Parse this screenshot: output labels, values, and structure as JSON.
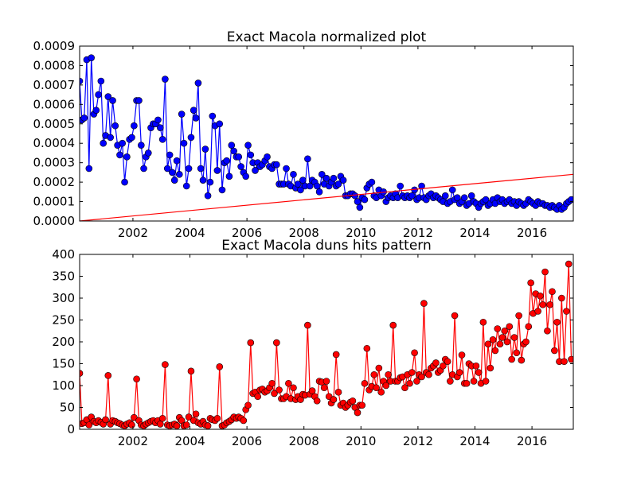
{
  "chart_data": [
    {
      "type": "line",
      "title": "Exact Macola normalized plot",
      "x": [
        2000.13,
        2000.21,
        2000.29,
        2000.38,
        2000.46,
        2000.54,
        2000.63,
        2000.71,
        2000.79,
        2000.88,
        2000.96,
        2001.04,
        2001.13,
        2001.21,
        2001.29,
        2001.38,
        2001.46,
        2001.54,
        2001.63,
        2001.71,
        2001.79,
        2001.88,
        2001.96,
        2002.04,
        2002.13,
        2002.21,
        2002.29,
        2002.38,
        2002.46,
        2002.54,
        2002.63,
        2002.71,
        2002.79,
        2002.88,
        2002.96,
        2003.04,
        2003.13,
        2003.21,
        2003.29,
        2003.38,
        2003.46,
        2003.54,
        2003.63,
        2003.71,
        2003.79,
        2003.88,
        2003.96,
        2004.04,
        2004.13,
        2004.21,
        2004.29,
        2004.38,
        2004.46,
        2004.54,
        2004.63,
        2004.71,
        2004.79,
        2004.88,
        2004.96,
        2005.04,
        2005.13,
        2005.21,
        2005.29,
        2005.38,
        2005.46,
        2005.54,
        2005.63,
        2005.71,
        2005.79,
        2005.88,
        2005.96,
        2006.04,
        2006.13,
        2006.21,
        2006.29,
        2006.38,
        2006.46,
        2006.54,
        2006.63,
        2006.71,
        2006.79,
        2006.88,
        2006.96,
        2007.04,
        2007.13,
        2007.21,
        2007.29,
        2007.38,
        2007.46,
        2007.54,
        2007.63,
        2007.71,
        2007.79,
        2007.88,
        2007.96,
        2008.04,
        2008.13,
        2008.21,
        2008.29,
        2008.38,
        2008.46,
        2008.54,
        2008.63,
        2008.71,
        2008.79,
        2008.88,
        2008.96,
        2009.04,
        2009.13,
        2009.21,
        2009.29,
        2009.38,
        2009.46,
        2009.54,
        2009.63,
        2009.71,
        2009.79,
        2009.88,
        2009.96,
        2010.04,
        2010.13,
        2010.21,
        2010.29,
        2010.38,
        2010.46,
        2010.54,
        2010.63,
        2010.71,
        2010.79,
        2010.88,
        2010.96,
        2011.04,
        2011.13,
        2011.21,
        2011.29,
        2011.38,
        2011.46,
        2011.54,
        2011.63,
        2011.71,
        2011.79,
        2011.88,
        2011.96,
        2012.04,
        2012.13,
        2012.21,
        2012.29,
        2012.38,
        2012.46,
        2012.54,
        2012.63,
        2012.71,
        2012.79,
        2012.88,
        2012.96,
        2013.04,
        2013.13,
        2013.21,
        2013.29,
        2013.38,
        2013.46,
        2013.54,
        2013.63,
        2013.71,
        2013.79,
        2013.88,
        2013.96,
        2014.04,
        2014.13,
        2014.21,
        2014.29,
        2014.38,
        2014.46,
        2014.54,
        2014.63,
        2014.71,
        2014.79,
        2014.88,
        2014.96,
        2015.04,
        2015.13,
        2015.21,
        2015.29,
        2015.38,
        2015.46,
        2015.54,
        2015.63,
        2015.71,
        2015.79,
        2015.88,
        2015.96,
        2016.04,
        2016.13,
        2016.21,
        2016.29,
        2016.38,
        2016.46,
        2016.54,
        2016.63,
        2016.71,
        2016.79,
        2016.88,
        2016.96,
        2017.04,
        2017.13,
        2017.21,
        2017.29,
        2017.38
      ],
      "series": [
        {
          "color": "#0000ff",
          "marker": true,
          "values": [
            0.00072,
            0.00052,
            0.00053,
            0.00083,
            0.00027,
            0.00084,
            0.00055,
            0.00057,
            0.00065,
            0.00072,
            0.0004,
            0.00044,
            0.00064,
            0.00043,
            0.00062,
            0.00049,
            0.00039,
            0.00034,
            0.0004,
            0.0002,
            0.00033,
            0.00042,
            0.00043,
            0.00049,
            0.00062,
            0.00062,
            0.00039,
            0.00027,
            0.00033,
            0.00035,
            0.00048,
            0.0005,
            0.0005,
            0.00052,
            0.00048,
            0.00042,
            0.00073,
            0.00027,
            0.00034,
            0.00025,
            0.00021,
            0.00031,
            0.00024,
            0.00055,
            0.0004,
            0.00018,
            0.00027,
            0.00043,
            0.00057,
            0.00053,
            0.00071,
            0.00027,
            0.00021,
            0.00037,
            0.00013,
            0.0002,
            0.00054,
            0.00049,
            0.00026,
            0.0005,
            0.00016,
            0.0003,
            0.00031,
            0.00023,
            0.00039,
            0.00036,
            0.00033,
            0.00033,
            0.00028,
            0.00025,
            0.00023,
            0.00039,
            0.00034,
            0.0003,
            0.00026,
            0.0003,
            0.00028,
            0.00029,
            0.00031,
            0.00033,
            0.00028,
            0.00027,
            0.00029,
            0.00029,
            0.00019,
            0.00019,
            0.00019,
            0.00027,
            0.00019,
            0.00018,
            0.00024,
            0.00017,
            0.00019,
            0.00016,
            0.00021,
            0.00018,
            0.00032,
            0.00018,
            0.00021,
            0.0002,
            0.00018,
            0.00015,
            0.00024,
            0.00019,
            0.00022,
            0.00018,
            0.0002,
            0.00022,
            0.00018,
            0.00019,
            0.00023,
            0.00021,
            0.00013,
            0.00013,
            0.00014,
            0.00014,
            0.00013,
            0.0001,
            7e-05,
            0.00012,
            0.00011,
            0.00017,
            0.00019,
            0.0002,
            0.00013,
            0.00012,
            0.00016,
            0.00013,
            0.00015,
            0.0001,
            0.00012,
            0.00013,
            0.00012,
            0.00014,
            0.00012,
            0.00018,
            0.00013,
            0.00012,
            0.00013,
            0.00012,
            0.00013,
            0.00016,
            0.00011,
            0.00012,
            0.00018,
            0.00012,
            0.00011,
            0.00013,
            0.00014,
            0.00012,
            0.00013,
            0.00012,
            0.00011,
            0.0001,
            0.00013,
            9e-05,
            0.0001,
            0.00016,
            0.00011,
            0.00012,
            9e-05,
            0.0001,
            0.00012,
            8e-05,
            9e-05,
            0.00013,
            0.0001,
            9e-05,
            7e-05,
            9e-05,
            0.0001,
            0.00011,
            8e-05,
            9e-05,
            0.00011,
            9e-05,
            0.00012,
            0.0001,
            0.00011,
            9e-05,
            0.0001,
            0.00011,
            9e-05,
            0.0001,
            8e-05,
            0.0001,
            9e-05,
            8e-05,
            9e-05,
            0.00011,
            0.0001,
            9e-05,
            8e-05,
            0.0001,
            9e-05,
            9e-05,
            8e-05,
            8e-05,
            7e-05,
            8e-05,
            7e-05,
            6e-05,
            8e-05,
            6e-05,
            7e-05,
            9e-05,
            0.0001,
            0.00011
          ]
        },
        {
          "color": "#ff0000",
          "marker": false,
          "x": [
            2000.13,
            2017.45
          ],
          "values": [
            0,
            0.00024
          ]
        }
      ],
      "xlim": [
        2000.13,
        2017.45
      ],
      "ylim": [
        0,
        0.0009
      ],
      "xticks": [
        2002,
        2004,
        2006,
        2008,
        2010,
        2012,
        2014,
        2016
      ],
      "yticks": [
        {
          "value": 0,
          "label": "0.0000"
        },
        {
          "value": 0.0001,
          "label": "0.0001"
        },
        {
          "value": 0.0002,
          "label": "0.0002"
        },
        {
          "value": 0.0003,
          "label": "0.0003"
        },
        {
          "value": 0.0004,
          "label": "0.0004"
        },
        {
          "value": 0.0005,
          "label": "0.0005"
        },
        {
          "value": 0.0006,
          "label": "0.0006"
        },
        {
          "value": 0.0007,
          "label": "0.0007"
        },
        {
          "value": 0.0008,
          "label": "0.0008"
        },
        {
          "value": 0.0009,
          "label": "0.0009"
        }
      ]
    },
    {
      "type": "line",
      "title": "Exact Macola duns hits pattern",
      "x": [
        2000.13,
        2000.21,
        2000.29,
        2000.38,
        2000.46,
        2000.54,
        2000.63,
        2000.71,
        2000.79,
        2000.88,
        2000.96,
        2001.04,
        2001.13,
        2001.21,
        2001.29,
        2001.38,
        2001.46,
        2001.54,
        2001.63,
        2001.71,
        2001.79,
        2001.88,
        2001.96,
        2002.04,
        2002.13,
        2002.21,
        2002.29,
        2002.38,
        2002.46,
        2002.54,
        2002.63,
        2002.71,
        2002.79,
        2002.88,
        2002.96,
        2003.04,
        2003.13,
        2003.21,
        2003.29,
        2003.38,
        2003.46,
        2003.54,
        2003.63,
        2003.71,
        2003.79,
        2003.88,
        2003.96,
        2004.04,
        2004.13,
        2004.21,
        2004.29,
        2004.38,
        2004.46,
        2004.54,
        2004.63,
        2004.71,
        2004.79,
        2004.88,
        2004.96,
        2005.04,
        2005.13,
        2005.21,
        2005.29,
        2005.38,
        2005.46,
        2005.54,
        2005.63,
        2005.71,
        2005.79,
        2005.88,
        2005.96,
        2006.04,
        2006.13,
        2006.21,
        2006.29,
        2006.38,
        2006.46,
        2006.54,
        2006.63,
        2006.71,
        2006.79,
        2006.88,
        2006.96,
        2007.04,
        2007.13,
        2007.21,
        2007.29,
        2007.38,
        2007.46,
        2007.54,
        2007.63,
        2007.71,
        2007.79,
        2007.88,
        2007.96,
        2008.04,
        2008.13,
        2008.21,
        2008.29,
        2008.38,
        2008.46,
        2008.54,
        2008.63,
        2008.71,
        2008.79,
        2008.88,
        2008.96,
        2009.04,
        2009.13,
        2009.21,
        2009.29,
        2009.38,
        2009.46,
        2009.54,
        2009.63,
        2009.71,
        2009.79,
        2009.88,
        2009.96,
        2010.04,
        2010.13,
        2010.21,
        2010.29,
        2010.38,
        2010.46,
        2010.54,
        2010.63,
        2010.71,
        2010.79,
        2010.88,
        2010.96,
        2011.04,
        2011.13,
        2011.21,
        2011.29,
        2011.38,
        2011.46,
        2011.54,
        2011.63,
        2011.71,
        2011.79,
        2011.88,
        2011.96,
        2012.04,
        2012.13,
        2012.21,
        2012.29,
        2012.38,
        2012.46,
        2012.54,
        2012.63,
        2012.71,
        2012.79,
        2012.88,
        2012.96,
        2013.04,
        2013.13,
        2013.21,
        2013.29,
        2013.38,
        2013.46,
        2013.54,
        2013.63,
        2013.71,
        2013.79,
        2013.88,
        2013.96,
        2014.04,
        2014.13,
        2014.21,
        2014.29,
        2014.38,
        2014.46,
        2014.54,
        2014.63,
        2014.71,
        2014.79,
        2014.88,
        2014.96,
        2015.04,
        2015.13,
        2015.21,
        2015.29,
        2015.38,
        2015.46,
        2015.54,
        2015.63,
        2015.71,
        2015.79,
        2015.88,
        2015.96,
        2016.04,
        2016.13,
        2016.21,
        2016.29,
        2016.38,
        2016.46,
        2016.54,
        2016.63,
        2016.71,
        2016.79,
        2016.88,
        2016.96,
        2017.04,
        2017.13,
        2017.21,
        2017.29,
        2017.38
      ],
      "series": [
        {
          "color": "#ff0000",
          "marker": true,
          "values": [
            128,
            13,
            15,
            22,
            10,
            28,
            18,
            15,
            20,
            16,
            12,
            22,
            123,
            12,
            20,
            18,
            15,
            13,
            10,
            8,
            12,
            15,
            10,
            27,
            115,
            20,
            10,
            8,
            12,
            15,
            18,
            20,
            15,
            20,
            12,
            25,
            148,
            10,
            8,
            10,
            12,
            8,
            27,
            20,
            8,
            10,
            28,
            133,
            20,
            35,
            15,
            12,
            18,
            10,
            8,
            25,
            22,
            20,
            25,
            143,
            8,
            10,
            15,
            18,
            22,
            28,
            25,
            28,
            25,
            20,
            45,
            55,
            198,
            82,
            85,
            75,
            90,
            92,
            85,
            88,
            95,
            105,
            82,
            198,
            90,
            70,
            70,
            75,
            105,
            70,
            95,
            68,
            75,
            68,
            80,
            78,
            238,
            80,
            88,
            75,
            65,
            110,
            108,
            95,
            110,
            75,
            60,
            68,
            171,
            85,
            55,
            60,
            50,
            55,
            62,
            65,
            50,
            38,
            55,
            55,
            105,
            185,
            90,
            98,
            125,
            95,
            140,
            85,
            110,
            100,
            125,
            110,
            238,
            110,
            110,
            118,
            120,
            95,
            125,
            105,
            130,
            175,
            110,
            125,
            120,
            288,
            130,
            125,
            140,
            145,
            152,
            130,
            135,
            145,
            160,
            155,
            110,
            125,
            260,
            120,
            130,
            170,
            105,
            105,
            150,
            145,
            110,
            145,
            130,
            105,
            245,
            110,
            195,
            140,
            205,
            180,
            230,
            195,
            210,
            225,
            200,
            235,
            160,
            210,
            175,
            260,
            158,
            195,
            200,
            235,
            335,
            265,
            310,
            270,
            305,
            285,
            360,
            225,
            285,
            315,
            180,
            245,
            155,
            300,
            155,
            270,
            378,
            160
          ]
        }
      ],
      "xlim": [
        2000.13,
        2017.45
      ],
      "ylim": [
        0,
        400
      ],
      "xticks": [
        2002,
        2004,
        2006,
        2008,
        2010,
        2012,
        2014,
        2016
      ],
      "yticks": [
        0,
        50,
        100,
        150,
        200,
        250,
        300,
        350,
        400
      ]
    }
  ]
}
